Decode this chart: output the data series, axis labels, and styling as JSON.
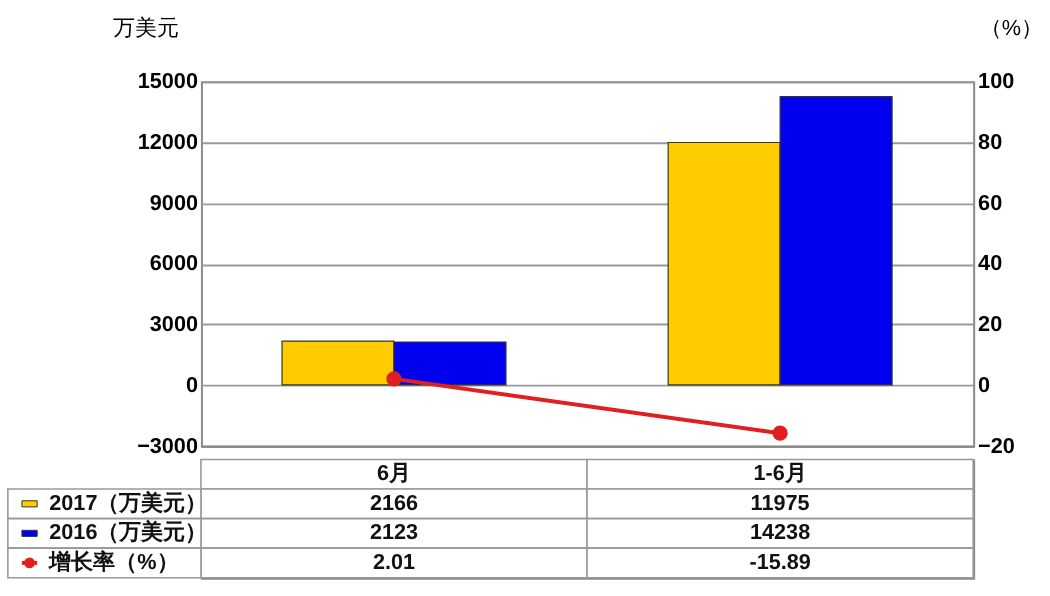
{
  "chart_data": {
    "type": "bar",
    "categories": [
      "6月",
      "1-6月"
    ],
    "ylabel": "万美元",
    "y2label": "（%）",
    "ylim": [
      -3000,
      15000
    ],
    "yticks": [
      -3000,
      0,
      3000,
      6000,
      9000,
      12000,
      15000
    ],
    "y2lim": [
      -20,
      100
    ],
    "y2ticks": [
      -20,
      0,
      20,
      40,
      60,
      80,
      100
    ],
    "grid": "y",
    "legend": "bottom",
    "data_labels": true,
    "marker": "circle",
    "series": [
      {
        "name": "2017（万美元）",
        "color": "#ffcc00",
        "values": [
          2166,
          11975
        ]
      },
      {
        "name": "2016（万美元）",
        "color": "#0000ee",
        "values": [
          2123,
          14238
        ]
      },
      {
        "name": "增长率（%）",
        "type": "line",
        "axis": "y2",
        "color": "#e02020",
        "values": [
          2.01,
          -15.89
        ]
      }
    ]
  }
}
